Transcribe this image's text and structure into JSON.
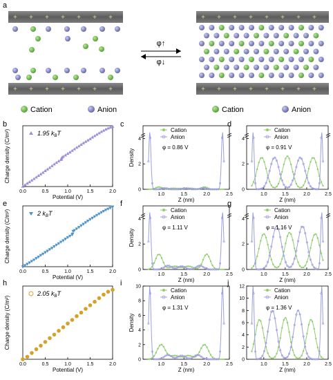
{
  "panels": {
    "a": "a",
    "b": "b",
    "c": "c",
    "d": "d",
    "e": "e",
    "f": "f",
    "g": "g",
    "h": "h",
    "i": "i",
    "j": "j"
  },
  "schematic": {
    "phi_up": "φ↑",
    "phi_down": "φ↓",
    "legend_left": {
      "cation": "Cation",
      "anion": "Anion"
    },
    "legend_right": {
      "cation": "Cation",
      "anion": "Anion"
    }
  },
  "colors": {
    "cation": "#5aa83a",
    "anion": "#7d7fb4",
    "cation_line": "#8fce6a",
    "anion_line": "#9c9ee0",
    "charge_b": "#9c8fd6",
    "charge_e": "#4f92c9",
    "charge_h": "#d4a12a",
    "electrode": "#5b5b5b"
  },
  "chart_data": [
    {
      "id": "b",
      "type": "scatter",
      "marker": "triangle-up",
      "legend": "1.95 kBT",
      "legend_main": "1.95 k",
      "legend_sub": "B",
      "legend_tail": "T",
      "xlabel": "Potential (V)",
      "ylabel": "Charge density (C/m²)",
      "xlim": [
        0,
        2.0
      ],
      "ylim": [
        0,
        0.35
      ],
      "xticks": [
        "0.0",
        "0.5",
        "1.0",
        "1.5",
        "2.0"
      ],
      "x": [
        0.0,
        0.05,
        0.1,
        0.15,
        0.2,
        0.25,
        0.3,
        0.35,
        0.4,
        0.45,
        0.5,
        0.55,
        0.6,
        0.65,
        0.7,
        0.75,
        0.8,
        0.85,
        0.86,
        0.87,
        0.9,
        0.95,
        1.0,
        1.05,
        1.1,
        1.15,
        1.2,
        1.25,
        1.3,
        1.35,
        1.4,
        1.45,
        1.5,
        1.55,
        1.6,
        1.65,
        1.7,
        1.75,
        1.8,
        1.85,
        1.9,
        1.95,
        2.0
      ],
      "y": [
        0.0,
        0.009,
        0.018,
        0.026,
        0.035,
        0.044,
        0.053,
        0.062,
        0.071,
        0.08,
        0.09,
        0.099,
        0.108,
        0.118,
        0.128,
        0.137,
        0.146,
        0.154,
        0.158,
        0.166,
        0.172,
        0.18,
        0.189,
        0.197,
        0.206,
        0.215,
        0.224,
        0.232,
        0.241,
        0.25,
        0.258,
        0.266,
        0.274,
        0.283,
        0.291,
        0.299,
        0.307,
        0.315,
        0.322,
        0.329,
        0.335,
        0.34,
        0.345
      ]
    },
    {
      "id": "e",
      "type": "scatter",
      "marker": "triangle-down",
      "legend": "2 kBT",
      "legend_main": "2 k",
      "legend_sub": "B",
      "legend_tail": "T",
      "xlabel": "Potential (V)",
      "ylabel": "Charge density (C/m²)",
      "xlim": [
        0,
        2.0
      ],
      "ylim": [
        0,
        0.35
      ],
      "xticks": [
        "0.0",
        "0.5",
        "1.0",
        "1.5",
        "2.0"
      ],
      "x": [
        0.0,
        0.05,
        0.1,
        0.15,
        0.2,
        0.25,
        0.3,
        0.35,
        0.4,
        0.45,
        0.5,
        0.55,
        0.6,
        0.65,
        0.7,
        0.75,
        0.8,
        0.85,
        0.9,
        0.95,
        1.0,
        1.05,
        1.1,
        1.11,
        1.12,
        1.15,
        1.2,
        1.25,
        1.3,
        1.35,
        1.4,
        1.45,
        1.5,
        1.55,
        1.6,
        1.65,
        1.7,
        1.75,
        1.8,
        1.85,
        1.9,
        1.95,
        2.0
      ],
      "y": [
        0.0,
        0.008,
        0.016,
        0.024,
        0.032,
        0.04,
        0.049,
        0.057,
        0.066,
        0.074,
        0.083,
        0.091,
        0.1,
        0.108,
        0.117,
        0.126,
        0.134,
        0.143,
        0.151,
        0.16,
        0.169,
        0.177,
        0.185,
        0.19,
        0.205,
        0.21,
        0.219,
        0.228,
        0.237,
        0.246,
        0.255,
        0.264,
        0.273,
        0.281,
        0.289,
        0.297,
        0.305,
        0.313,
        0.32,
        0.327,
        0.333,
        0.339,
        0.345
      ]
    },
    {
      "id": "h",
      "type": "scatter",
      "marker": "circle",
      "legend": "2.05 kBT",
      "legend_main": "2.05 k",
      "legend_sub": "B",
      "legend_tail": "T",
      "xlabel": "Potential (V)",
      "ylabel": "Charge density (C/m²)",
      "xlim": [
        0,
        2.0
      ],
      "ylim": [
        0,
        0.35
      ],
      "xticks": [
        "0.0",
        "0.5",
        "1.0",
        "1.5",
        "2.0"
      ],
      "x": [
        0.0,
        0.1,
        0.2,
        0.3,
        0.4,
        0.5,
        0.6,
        0.7,
        0.8,
        0.9,
        1.0,
        1.1,
        1.2,
        1.3,
        1.4,
        1.5,
        1.6,
        1.7,
        1.8,
        1.9,
        2.0
      ],
      "y": [
        0.0,
        0.012,
        0.03,
        0.048,
        0.065,
        0.083,
        0.101,
        0.118,
        0.136,
        0.153,
        0.171,
        0.188,
        0.206,
        0.223,
        0.241,
        0.258,
        0.275,
        0.292,
        0.309,
        0.323,
        0.332
      ]
    },
    {
      "id": "c",
      "type": "line",
      "phi": "φ = 0.86 V",
      "xlabel": "Z (nm)",
      "ylabel": "Density",
      "xlim": [
        0.6,
        2.5
      ],
      "ylim": [
        0,
        5
      ],
      "yticks": [
        0,
        2,
        4
      ],
      "ybreak": true,
      "xticks": [
        "0.5",
        "1.0",
        "1.5",
        "2.0",
        "2.5"
      ],
      "series": [
        {
          "name": "Cation",
          "peaks": [
            [
              0.95,
              0.18,
              0.07
            ],
            [
              1.25,
              0.08,
              0.08
            ],
            [
              1.45,
              0.06,
              0.08
            ],
            [
              1.65,
              0.08,
              0.08
            ],
            [
              1.95,
              0.18,
              0.07
            ]
          ]
        },
        {
          "name": "Anion",
          "peaks": [
            [
              0.75,
              4.5,
              0.025
            ],
            [
              1.08,
              0.1,
              0.06
            ],
            [
              1.55,
              0.08,
              0.07
            ],
            [
              1.92,
              0.1,
              0.06
            ],
            [
              2.35,
              4.5,
              0.025
            ]
          ]
        }
      ]
    },
    {
      "id": "d",
      "type": "line",
      "phi": "φ = 0.91 V",
      "xlabel": "Z (nm)",
      "ylabel": "Density",
      "xlim": [
        0.6,
        2.5
      ],
      "ylim": [
        0,
        5
      ],
      "yticks": [
        0,
        2,
        4
      ],
      "ybreak": true,
      "xticks": [
        "0.5",
        "1.0",
        "1.5",
        "2.0",
        "2.5"
      ],
      "series": [
        {
          "name": "Cation",
          "peaks": [
            [
              0.95,
              2.5,
              0.11
            ],
            [
              1.55,
              2.6,
              0.11
            ],
            [
              2.15,
              2.5,
              0.11
            ]
          ]
        },
        {
          "name": "Anion",
          "peaks": [
            [
              0.75,
              4.5,
              0.025
            ],
            [
              1.25,
              2.5,
              0.11
            ],
            [
              1.85,
              2.5,
              0.11
            ],
            [
              2.35,
              4.5,
              0.025
            ]
          ]
        }
      ]
    },
    {
      "id": "f",
      "type": "line",
      "phi": "φ = 1.11 V",
      "xlabel": "Z (nm)",
      "ylabel": "Density",
      "xlim": [
        0.6,
        2.5
      ],
      "ylim": [
        0,
        5
      ],
      "yticks": [
        0,
        2,
        4
      ],
      "ybreak": true,
      "xticks": [
        "0.5",
        "1.0",
        "1.5",
        "2.0",
        "2.5"
      ],
      "series": [
        {
          "name": "Cation",
          "peaks": [
            [
              0.95,
              1.2,
              0.08
            ],
            [
              1.3,
              0.25,
              0.1
            ],
            [
              1.6,
              0.25,
              0.1
            ],
            [
              2.0,
              1.2,
              0.08
            ]
          ]
        },
        {
          "name": "Anion",
          "peaks": [
            [
              0.75,
              4.5,
              0.025
            ],
            [
              1.15,
              0.3,
              0.08
            ],
            [
              1.45,
              0.25,
              0.08
            ],
            [
              1.85,
              0.3,
              0.08
            ],
            [
              2.35,
              4.5,
              0.025
            ]
          ]
        }
      ]
    },
    {
      "id": "g",
      "type": "line",
      "phi": "φ = 1.16 V",
      "xlabel": "Z (nm)",
      "ylabel": "Density",
      "xlim": [
        0.6,
        2.5
      ],
      "ylim": [
        0,
        5
      ],
      "yticks": [
        0,
        2,
        4
      ],
      "ybreak": true,
      "xticks": [
        "0.5",
        "1.0",
        "1.5",
        "2.0",
        "2.5"
      ],
      "series": [
        {
          "name": "Cation",
          "peaks": [
            [
              1.0,
              2.8,
              0.11
            ],
            [
              1.6,
              2.9,
              0.11
            ],
            [
              2.2,
              2.8,
              0.11
            ]
          ]
        },
        {
          "name": "Anion",
          "peaks": [
            [
              0.75,
              4.5,
              0.025
            ],
            [
              1.3,
              3.4,
              0.11
            ],
            [
              1.9,
              3.4,
              0.11
            ],
            [
              2.35,
              4.5,
              0.025
            ]
          ]
        }
      ]
    },
    {
      "id": "i",
      "type": "line",
      "phi": "φ = 1.31 V",
      "xlabel": "Z (nm)",
      "ylabel": "Density",
      "xlim": [
        0.6,
        2.5
      ],
      "ylim": [
        0,
        10
      ],
      "yticks": [
        0,
        2,
        4,
        6,
        8,
        10
      ],
      "ybreak": false,
      "xticks": [
        "0.5",
        "1.0",
        "1.5",
        "2.0",
        "2.5"
      ],
      "series": [
        {
          "name": "Cation",
          "peaks": [
            [
              1.0,
              2.0,
              0.09
            ],
            [
              1.3,
              0.5,
              0.1
            ],
            [
              1.6,
              0.5,
              0.1
            ],
            [
              1.95,
              2.0,
              0.09
            ]
          ]
        },
        {
          "name": "Anion",
          "peaks": [
            [
              0.75,
              10.0,
              0.025
            ],
            [
              1.15,
              0.6,
              0.08
            ],
            [
              1.45,
              0.5,
              0.08
            ],
            [
              1.8,
              0.6,
              0.08
            ],
            [
              2.35,
              10.0,
              0.025
            ]
          ]
        }
      ]
    },
    {
      "id": "j",
      "type": "line",
      "phi": "φ = 1.36 V",
      "xlabel": "Z (nm)",
      "ylabel": "Density",
      "xlim": [
        0.6,
        2.5
      ],
      "ylim": [
        0,
        12
      ],
      "yticks": [
        0,
        2,
        4,
        6,
        8,
        10,
        12
      ],
      "ybreak": false,
      "xticks": [
        "0.5",
        "1.0",
        "1.5",
        "2.0",
        "2.5"
      ],
      "series": [
        {
          "name": "Cation",
          "peaks": [
            [
              0.9,
              6.5,
              0.1
            ],
            [
              1.5,
              6.8,
              0.1
            ],
            [
              2.1,
              6.5,
              0.1
            ]
          ]
        },
        {
          "name": "Anion",
          "peaks": [
            [
              0.75,
              12.0,
              0.025
            ],
            [
              1.2,
              8.0,
              0.1
            ],
            [
              1.8,
              8.0,
              0.1
            ],
            [
              2.35,
              12.0,
              0.025
            ]
          ]
        }
      ]
    }
  ]
}
